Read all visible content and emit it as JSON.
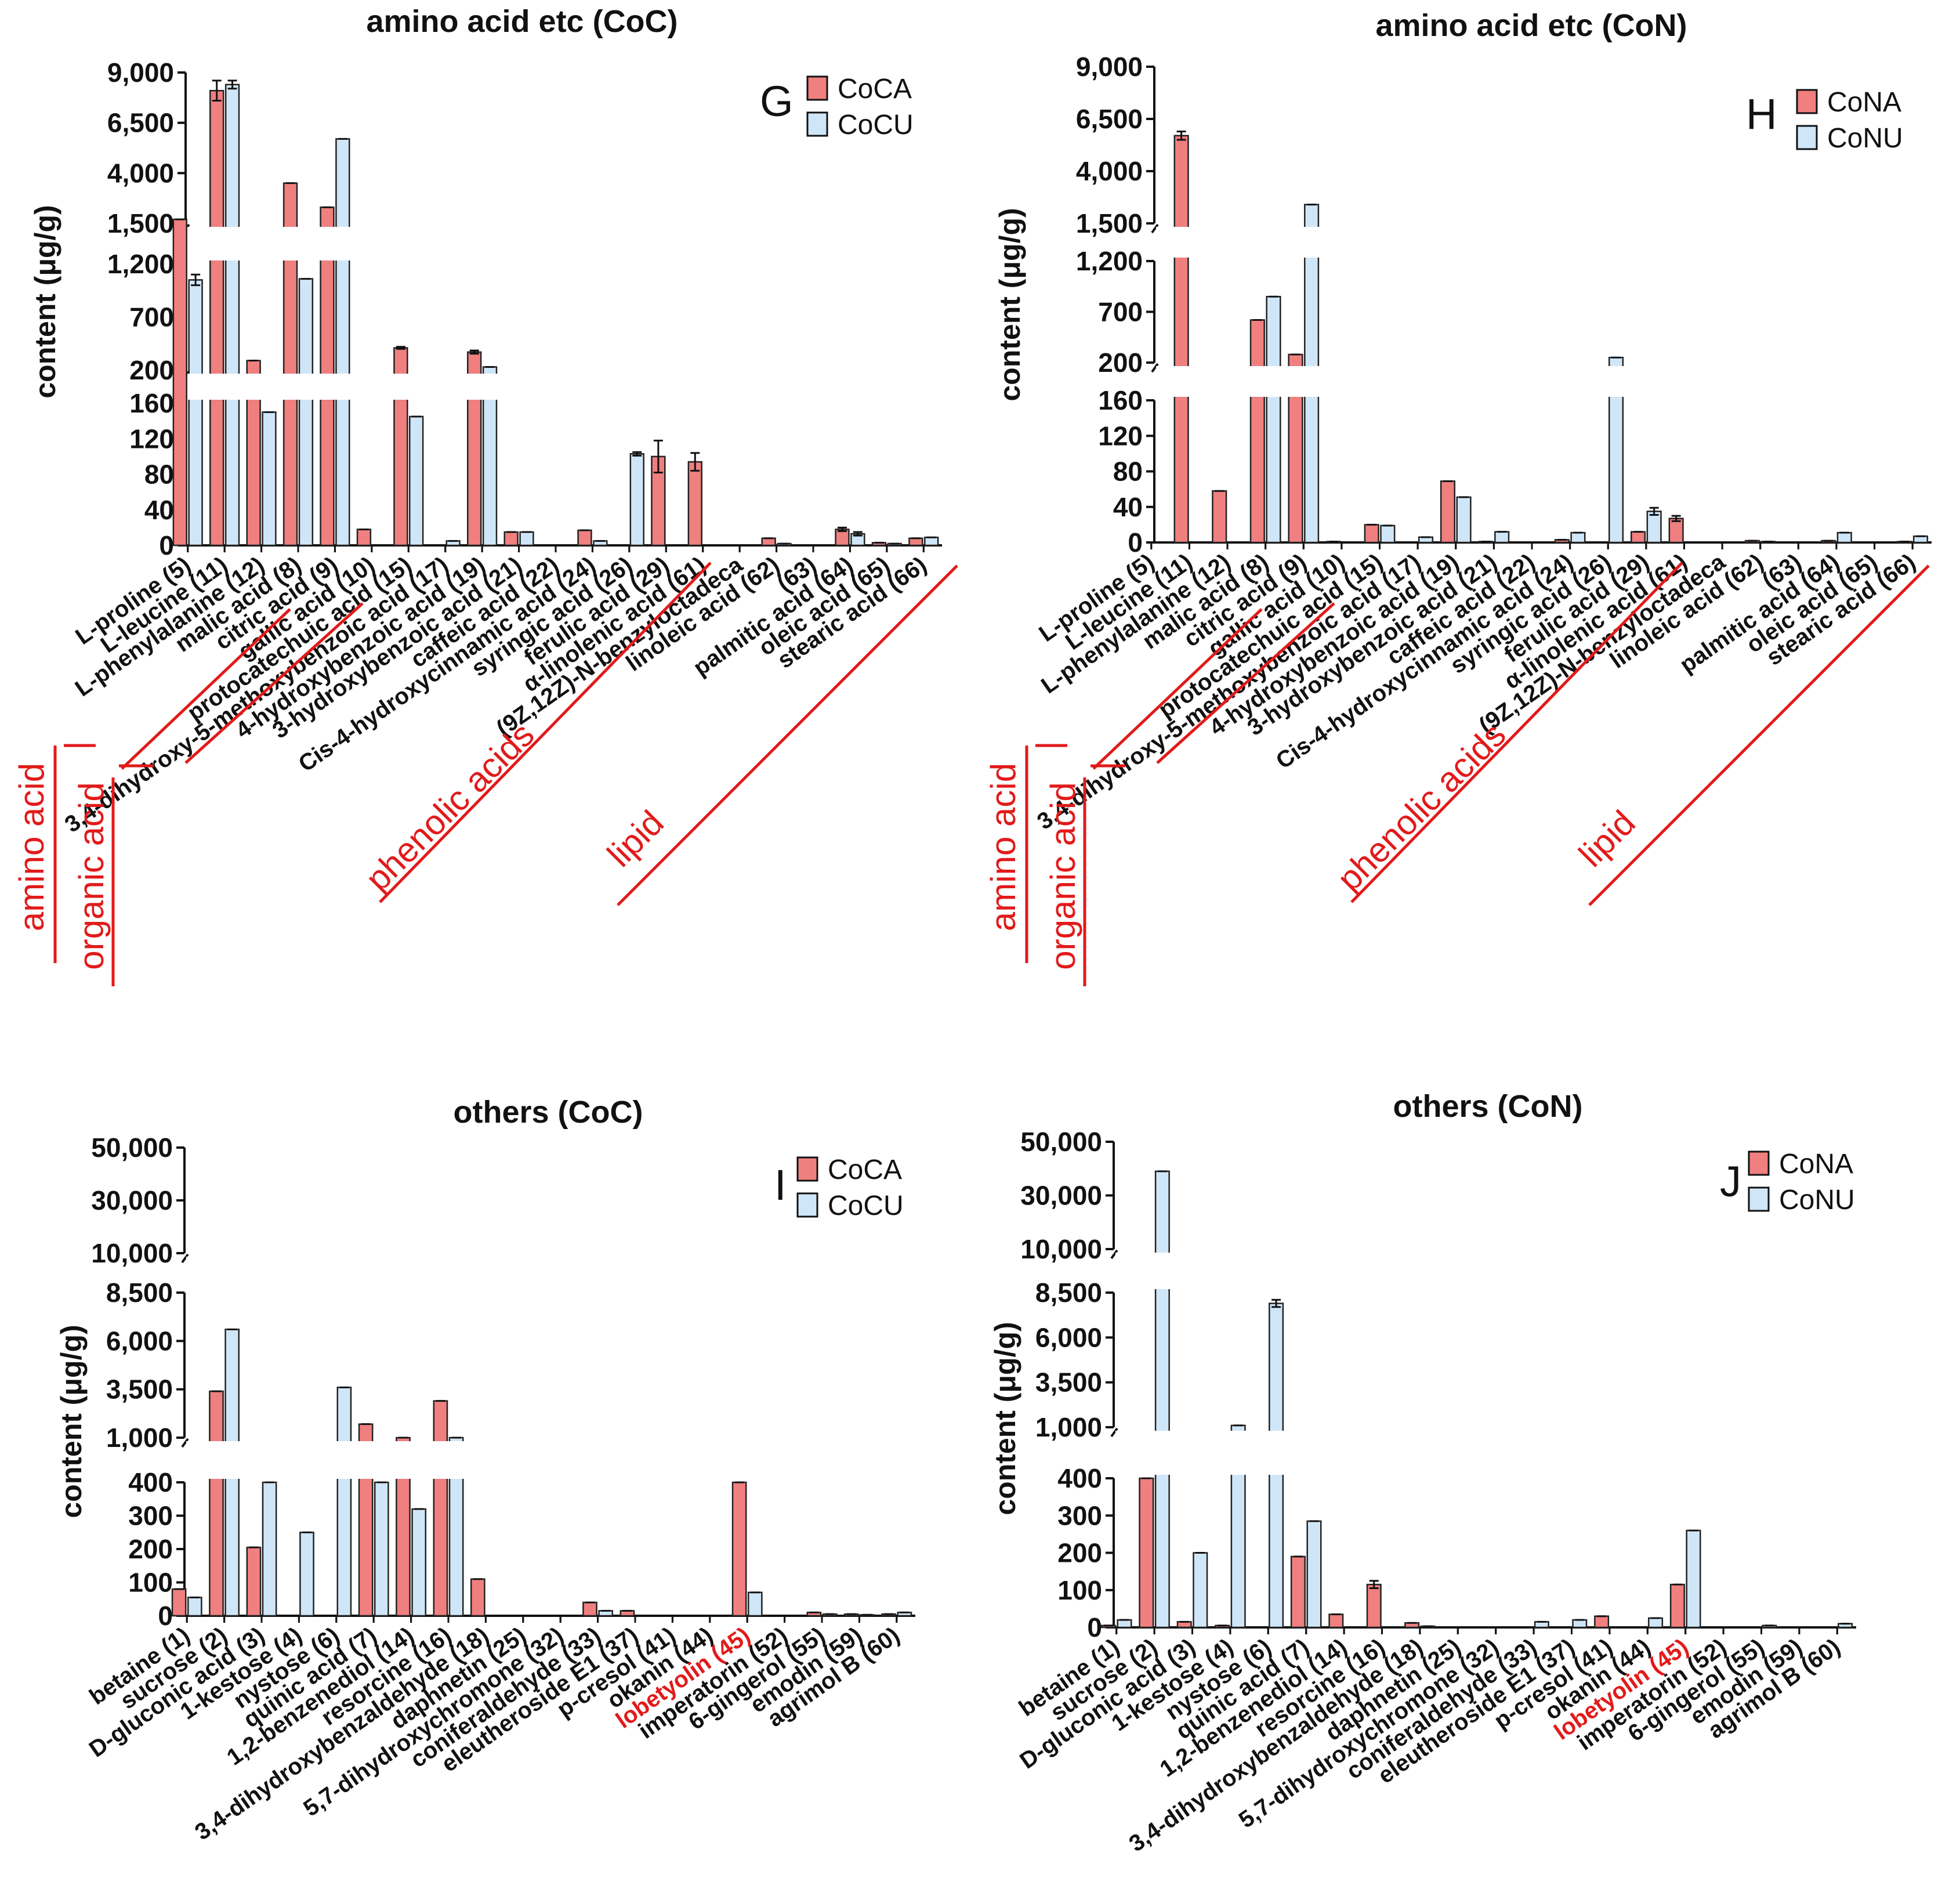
{
  "colors": {
    "bar_a": "#f07f7f",
    "bar_b": "#cfe6f8",
    "edge": "#222222",
    "accent_red": "#e21a1a"
  },
  "ylabel": "content (μg/g)",
  "chart_data": [
    {
      "type": "bar",
      "panel": "G",
      "title": "amino acid etc (CoC)",
      "ylabel": "content (μg/g)",
      "legend_position": "top-right",
      "axis_breaks": [
        [
          160,
          200
        ],
        [
          1200,
          1500
        ]
      ],
      "ytick_labels": [
        "0",
        "40",
        "80",
        "120",
        "160",
        "200",
        "700",
        "1,200",
        "1,500",
        "4,000",
        "6,500",
        "9,000"
      ],
      "categories": [
        "L-proline (5)",
        "L-leucine (11)",
        "L-phenylalanine (12)",
        "malic acid (8)",
        "citric acid (9)",
        "gallic acid (10)",
        "protocatechuic acid (15)",
        "3,4-dihydroxy-5-methoxybenzoic acid (17)",
        "4-hydroxybenzoic acid (19)",
        "3-hydroxybenzoic acid (21)",
        "caffeic acid (22)",
        "Cis-4-hydroxycinnamic acid (24)",
        "syringic acid (26)",
        "ferulic acid (29)",
        "α-linolenic acid (61)",
        "(9Z,12Z)-N-benzyloctadeca",
        "linoleic acid (62)",
        "(63)",
        "palmitic acid (64)",
        "oleic acid (65)",
        "stearic acid (66)"
      ],
      "groups": [
        {
          "label": "amino acid",
          "members": 3
        },
        {
          "label": "organic acid",
          "members": 2
        },
        {
          "label": "phenolic acids",
          "members": 9
        },
        {
          "label": "lipid",
          "members": 7
        }
      ],
      "series": [
        {
          "name": "CoCA",
          "values": [
            1700,
            8100,
            290,
            3500,
            2300,
            18,
            410,
            0,
            370,
            15,
            0,
            17,
            0,
            100,
            94,
            0,
            8,
            0,
            18,
            3,
            8
          ],
          "errors": [
            0,
            500,
            0,
            0,
            0,
            0,
            10,
            0,
            15,
            0,
            0,
            0,
            0,
            18,
            10,
            0,
            0,
            0,
            2,
            0,
            0
          ]
        },
        {
          "name": "CoCU",
          "values": [
            1050,
            8400,
            150,
            1060,
            5700,
            0,
            145,
            5,
            230,
            15,
            0,
            5,
            103,
            0,
            0,
            0,
            2,
            0,
            13,
            2,
            9
          ],
          "errors": [
            50,
            200,
            0,
            0,
            0,
            0,
            0,
            0,
            0,
            0,
            0,
            0,
            2,
            0,
            0,
            0,
            0,
            0,
            2,
            0,
            0
          ]
        }
      ]
    },
    {
      "type": "bar",
      "panel": "H",
      "title": "amino acid etc (CoN)",
      "ylabel": "content (μg/g)",
      "legend_position": "top-right",
      "axis_breaks": [
        [
          160,
          200
        ],
        [
          1200,
          1500
        ]
      ],
      "ytick_labels": [
        "0",
        "40",
        "80",
        "120",
        "160",
        "200",
        "700",
        "1,200",
        "1,500",
        "4,000",
        "6,500",
        "9,000"
      ],
      "categories": [
        "L-proline (5)",
        "L-leucine (11)",
        "L-phenylalanine (12)",
        "malic acid (8)",
        "citric acid (9)",
        "gallic acid (10)",
        "protocatechuic acid (15)",
        "3,4-dihydroxy-5-methoxybenzoic acid (17)",
        "4-hydroxybenzoic acid (19)",
        "3-hydroxybenzoic acid (21)",
        "caffeic acid (22)",
        "Cis-4-hydroxycinnamic acid (24)",
        "syringic acid (26)",
        "ferulic acid (29)",
        "α-linolenic acid (61)",
        "(9Z,12Z)-N-benzyloctadeca",
        "linoleic acid (62)",
        "(63)",
        "palmitic acid (64)",
        "oleic acid (65)",
        "stearic acid (66)"
      ],
      "groups": [
        {
          "label": "amino acid",
          "members": 3
        },
        {
          "label": "organic acid",
          "members": 2
        },
        {
          "label": "phenolic acids",
          "members": 9
        },
        {
          "label": "lipid",
          "members": 7
        }
      ],
      "series": [
        {
          "name": "CoNA",
          "values": [
            0,
            5700,
            58,
            620,
            280,
            1,
            20,
            0,
            69,
            1,
            0,
            3,
            0,
            12,
            27,
            0,
            2,
            0,
            2,
            0,
            1
          ],
          "errors": [
            0,
            200,
            0,
            0,
            0,
            0,
            0,
            0,
            0,
            0,
            0,
            0,
            0,
            0,
            3,
            0,
            0,
            0,
            0,
            0,
            0
          ]
        },
        {
          "name": "CoNU",
          "values": [
            0,
            0,
            0,
            850,
            2400,
            0,
            19,
            6,
            51,
            12,
            0,
            11,
            250,
            35,
            0,
            0,
            1,
            0,
            11,
            0,
            7
          ],
          "errors": [
            0,
            0,
            0,
            0,
            0,
            0,
            0,
            0,
            0,
            0,
            0,
            0,
            0,
            4,
            0,
            0,
            0,
            0,
            0,
            0,
            0
          ]
        }
      ]
    },
    {
      "type": "bar",
      "panel": "I",
      "title": "others (CoC)",
      "ylabel": "content (μg/g)",
      "legend_position": "top-right",
      "axis_breaks": [
        [
          400,
          1000
        ],
        [
          8500,
          10000
        ]
      ],
      "ytick_labels": [
        "0",
        "100",
        "200",
        "300",
        "400",
        "1,000",
        "3,500",
        "6,000",
        "8,500",
        "10,000",
        "30,000",
        "50,000"
      ],
      "categories": [
        "betaine (1)",
        "sucrose (2)",
        "D-gluconic acid (3)",
        "1-kestose (4)",
        "nystose (6)",
        "quinic acid (7)",
        "1,2-benzenediol (14)",
        "resorcine (16)",
        "3,4-dihydroxybenzaldehyde (18)",
        "daphnetin (25)",
        "5,7-dihydroxychromone (32)",
        "coniferaldehyde (33)",
        "eleutheroside E1 (37)",
        "p-cresol (41)",
        "okanin (44)",
        "lobetyolin (45)",
        "imperatorin (52)",
        "6-gingerol (55)",
        "emodin (59)",
        "agrimol B (60)"
      ],
      "highlight_category": "lobetyolin (45)",
      "series": [
        {
          "name": "CoCA",
          "values": [
            80,
            3400,
            205,
            0,
            0,
            1700,
            1000,
            2900,
            110,
            0,
            0,
            40,
            15,
            0,
            0,
            950,
            0,
            10,
            5,
            5
          ],
          "errors": [
            0,
            0,
            0,
            0,
            0,
            0,
            0,
            0,
            0,
            0,
            0,
            0,
            0,
            0,
            0,
            0,
            0,
            0,
            0,
            0
          ]
        },
        {
          "name": "CoCU",
          "values": [
            55,
            6600,
            700,
            250,
            3600,
            700,
            320,
            1000,
            0,
            0,
            0,
            15,
            0,
            0,
            0,
            70,
            0,
            5,
            3,
            10
          ],
          "errors": [
            0,
            0,
            0,
            0,
            0,
            0,
            0,
            0,
            0,
            0,
            0,
            0,
            0,
            0,
            0,
            0,
            0,
            0,
            0,
            0
          ]
        }
      ]
    },
    {
      "type": "bar",
      "panel": "J",
      "title": "others (CoN)",
      "ylabel": "content (μg/g)",
      "legend_position": "top-right",
      "axis_breaks": [
        [
          400,
          1000
        ],
        [
          8500,
          10000
        ]
      ],
      "ytick_labels": [
        "0",
        "100",
        "200",
        "300",
        "400",
        "1,000",
        "3,500",
        "6,000",
        "8,500",
        "10,000",
        "30,000",
        "50,000"
      ],
      "categories": [
        "betaine (1)",
        "sucrose (2)",
        "D-gluconic acid (3)",
        "1-kestose (4)",
        "nystose (6)",
        "quinic acid (7)",
        "1,2-benzenediol (14)",
        "resorcine (16)",
        "3,4-dihydroxybenzaldehyde (18)",
        "daphnetin (25)",
        "5,7-dihydroxychromone (32)",
        "coniferaldehyde (33)",
        "eleutheroside E1 (37)",
        "p-cresol (41)",
        "okanin (44)",
        "lobetyolin (45)",
        "imperatorin (52)",
        "6-gingerol (55)",
        "emodin (59)",
        "agrimol B (60)"
      ],
      "highlight_category": "lobetyolin (45)",
      "series": [
        {
          "name": "CoNA",
          "values": [
            5,
            900,
            15,
            5,
            0,
            190,
            35,
            115,
            12,
            0,
            0,
            0,
            0,
            30,
            0,
            115,
            0,
            0,
            0,
            0
          ],
          "errors": [
            0,
            0,
            0,
            0,
            0,
            0,
            0,
            10,
            0,
            0,
            0,
            0,
            0,
            0,
            0,
            0,
            0,
            0,
            0,
            0
          ]
        },
        {
          "name": "CoNU",
          "values": [
            20,
            39000,
            200,
            1100,
            7900,
            285,
            0,
            0,
            3,
            0,
            0,
            15,
            20,
            0,
            25,
            260,
            0,
            5,
            0,
            10
          ],
          "errors": [
            0,
            0,
            0,
            0,
            200,
            0,
            0,
            0,
            0,
            0,
            0,
            0,
            0,
            0,
            0,
            0,
            0,
            0,
            0,
            0
          ]
        }
      ]
    }
  ]
}
